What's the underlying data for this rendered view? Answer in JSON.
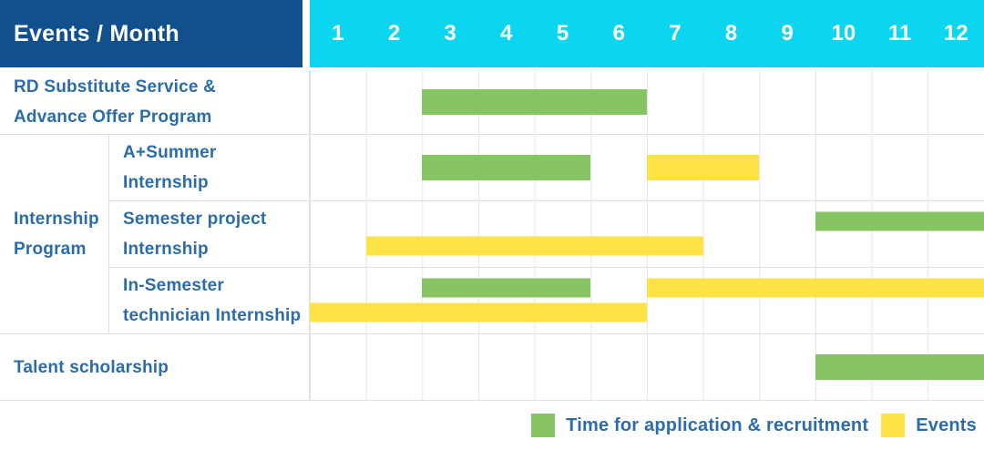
{
  "colors": {
    "header_bg": "#11508c",
    "month_header_bg": "#0cd6ef",
    "label_text": "#2b6cab",
    "green": "#87c463",
    "yellow": "#fde345",
    "grid_line": "#e6e6e6",
    "row_line": "#e0e0e0"
  },
  "header": {
    "title": "Events / Month",
    "months": [
      "1",
      "2",
      "3",
      "4",
      "5",
      "6",
      "7",
      "8",
      "9",
      "10",
      "11",
      "12"
    ]
  },
  "group": {
    "lines": [
      "Internship",
      "Program"
    ]
  },
  "rows": [
    {
      "label": "RD Substitute Service & Advance Offer Program",
      "lines": [
        "RD Substitute Service &",
        "Advance Offer Program"
      ],
      "bars": [
        {
          "color": "green",
          "start": 3,
          "end": 6,
          "lane": "single"
        }
      ]
    },
    {
      "label": "A+Summer Internship",
      "lines": [
        "A+Summer",
        "Internship"
      ],
      "bars": [
        {
          "color": "green",
          "start": 3,
          "end": 5,
          "lane": "single"
        },
        {
          "color": "yellow",
          "start": 7,
          "end": 8,
          "lane": "single"
        }
      ]
    },
    {
      "label": "Semester project Internship",
      "lines": [
        "Semester project",
        "Internship"
      ],
      "bars": [
        {
          "color": "green",
          "start": 10,
          "end": 12,
          "lane": "top"
        },
        {
          "color": "yellow",
          "start": 2,
          "end": 7,
          "lane": "bottom"
        }
      ]
    },
    {
      "label": "In-Semester technician Internship",
      "lines": [
        "In-Semester",
        "technician Internship"
      ],
      "bars": [
        {
          "color": "green",
          "start": 3,
          "end": 5,
          "lane": "top"
        },
        {
          "color": "yellow",
          "start": 7,
          "end": 12,
          "lane": "top"
        },
        {
          "color": "yellow",
          "start": 1,
          "end": 6,
          "lane": "bottom"
        }
      ]
    },
    {
      "label": "Talent scholarship",
      "lines": [
        "Talent scholarship"
      ],
      "bars": [
        {
          "color": "green",
          "start": 10,
          "end": 12,
          "lane": "single"
        }
      ]
    }
  ],
  "legend": {
    "items": [
      {
        "color": "green",
        "label": "Time for application & recruitment"
      },
      {
        "color": "yellow",
        "label": "Events"
      }
    ]
  },
  "chart_data": {
    "type": "bar",
    "subtype": "gantt-timeline",
    "title": "Events / Month",
    "x_axis": {
      "label": "Month",
      "ticks": [
        1,
        2,
        3,
        4,
        5,
        6,
        7,
        8,
        9,
        10,
        11,
        12
      ],
      "range": [
        1,
        12
      ]
    },
    "grid": true,
    "legend_position": "bottom-right",
    "series": [
      {
        "name": "Time for application & recruitment",
        "color_key": "green",
        "spans": [
          {
            "row": "RD Substitute Service & Advance Offer Program",
            "start_month": 3,
            "end_month": 6
          },
          {
            "row": "A+Summer Internship",
            "start_month": 3,
            "end_month": 5
          },
          {
            "row": "Semester project Internship",
            "start_month": 10,
            "end_month": 12
          },
          {
            "row": "In-Semester technician Internship",
            "start_month": 3,
            "end_month": 5
          },
          {
            "row": "Talent scholarship",
            "start_month": 10,
            "end_month": 12
          }
        ]
      },
      {
        "name": "Events",
        "color_key": "yellow",
        "spans": [
          {
            "row": "A+Summer Internship",
            "start_month": 7,
            "end_month": 8
          },
          {
            "row": "Semester project Internship",
            "start_month": 2,
            "end_month": 7
          },
          {
            "row": "In-Semester technician Internship",
            "start_month": 7,
            "end_month": 12
          },
          {
            "row": "In-Semester technician Internship",
            "start_month": 1,
            "end_month": 6
          }
        ]
      }
    ]
  }
}
